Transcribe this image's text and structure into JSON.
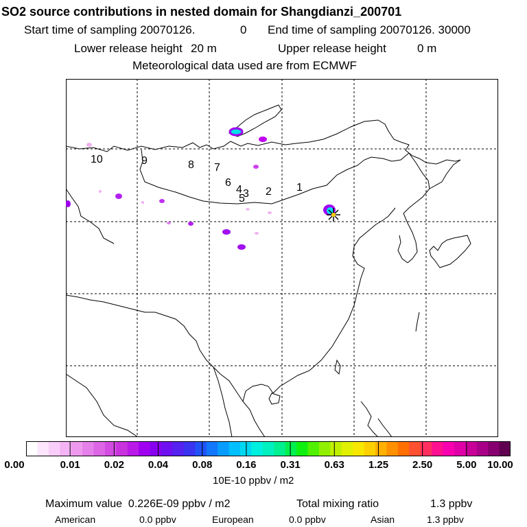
{
  "header": {
    "title": "SO2 source contributions in nested domain for Shangdianzi_200701",
    "start_label": "Start time of sampling 20070126.",
    "start_value": "0",
    "end_label": "End time of sampling 20070126. 30000",
    "lower_label": "Lower release height",
    "lower_value": "20 m",
    "upper_label": "Upper release height",
    "upper_value": "0 m",
    "met": "Meteorological data used are from ECMWF"
  },
  "map": {
    "region_labels": [
      "1",
      "2",
      "3",
      "4",
      "5",
      "6",
      "7",
      "8",
      "9",
      "10"
    ],
    "site_marker": "star-marker"
  },
  "colorbar": {
    "colors": [
      "#ffffff",
      "#fde6fd",
      "#f9cdf9",
      "#f4b3f4",
      "#ee99ee",
      "#e680ea",
      "#dd66e6",
      "#d34ce2",
      "#c933de",
      "#b91ae8",
      "#a000f0",
      "#8800f0",
      "#6f10f0",
      "#5522f0",
      "#3a33f0",
      "#2052f8",
      "#1277fb",
      "#089cfd",
      "#00c0ff",
      "#00d8f0",
      "#00f0e0",
      "#00f0c0",
      "#00f090",
      "#00f050",
      "#10f010",
      "#50f000",
      "#90f000",
      "#c0f000",
      "#e0f000",
      "#f8e800",
      "#ffd000",
      "#ffb000",
      "#ff9000",
      "#ff7000",
      "#ff5030",
      "#ff3060",
      "#ff1090",
      "#f800b0",
      "#e000a8",
      "#c80098",
      "#a80088",
      "#880070",
      "#600050"
    ],
    "tick_labels": [
      "0.00",
      "0.01",
      "0.02",
      "0.04",
      "0.08",
      "0.16",
      "0.31",
      "0.63",
      "1.25",
      "2.50",
      "5.00",
      "10.00"
    ],
    "units": "10E-10 ppbv / m2"
  },
  "footer": {
    "max_label": "Maximum value  0.226E-09 ppbv / m2",
    "total_label": "Total mixing ratio",
    "total_value": "1.3 ppbv",
    "american_label": "American",
    "american_value": "0.0 ppbv",
    "european_label": "European",
    "european_value": "0.0 ppbv",
    "asian_label": "Asian",
    "asian_value": "1.3 ppbv"
  }
}
